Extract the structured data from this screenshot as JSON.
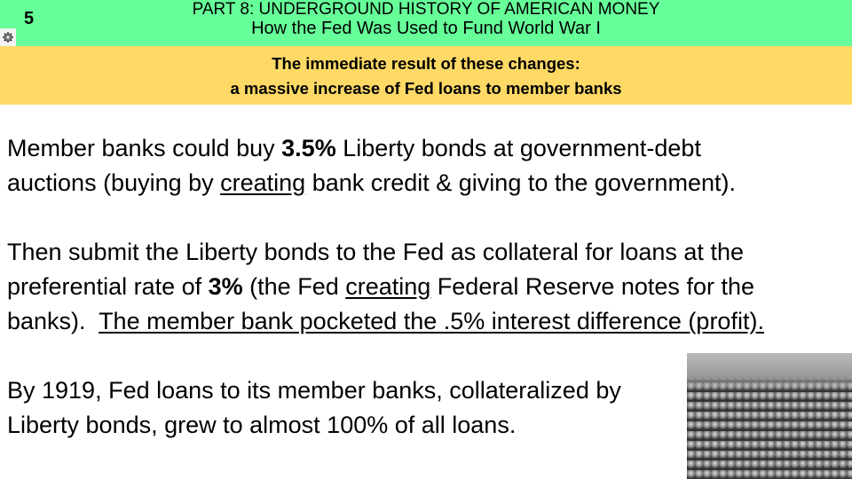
{
  "header": {
    "slide_number": "5",
    "series_title": "PART 8:  UNDERGROUND HISTORY OF AMERICAN MONEY",
    "title": "How the Fed Was Used to Fund World War I",
    "settings_icon": "gear-icon",
    "colors": {
      "header_bg": "#66FF99",
      "subtitle_bg": "#FFD966"
    }
  },
  "subtitle": {
    "line1": "The immediate result of these changes:",
    "line2": "a massive increase of Fed loans to member banks"
  },
  "body": {
    "p1": {
      "a": "Member banks could buy ",
      "b": "3.5%",
      "c": " Liberty bonds at government-debt",
      "d": "auctions (buying by ",
      "e": "creating",
      "f": " bank credit & giving to the government)."
    },
    "p2": {
      "a": "Then submit the Liberty bonds to the Fed as collateral for loans at the",
      "b": "preferential rate of ",
      "c": "3%",
      "d": " (the Fed ",
      "e": "creating",
      "f": " Federal Reserve notes for the",
      "g": "banks).  ",
      "h": "The member bank pocketed the .5% interest difference (profit)."
    },
    "p3": {
      "a": "By 1919, Fed loans to its member banks, collateralized by",
      "b": "Liberty bonds, grew to almost 100% of all loans."
    }
  },
  "photo": {
    "subject": "munitions-factory-shells-photo"
  }
}
